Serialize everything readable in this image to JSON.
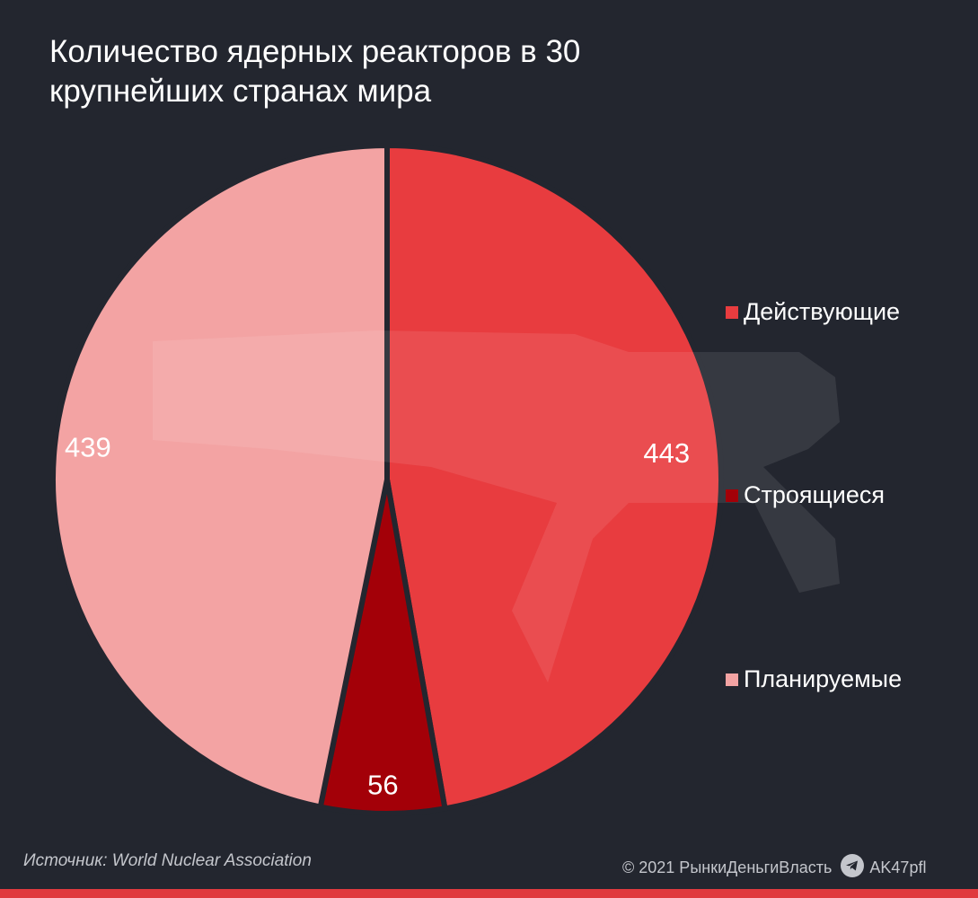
{
  "chart_data": {
    "type": "pie",
    "title": "Количество ядерных реакторов в 30 крупнейших странах мира",
    "slices": [
      {
        "label": "Действующие",
        "value": 443,
        "value_label": "443",
        "color": "#e83c3f"
      },
      {
        "label": "Строящиеся",
        "value": 56,
        "value_label": "56",
        "color": "#a30008"
      },
      {
        "label": "Планируемые",
        "value": 439,
        "value_label": "439",
        "color": "#f3a3a3"
      }
    ],
    "start_angle": "12 o'clock",
    "direction": "clockwise",
    "legend_position": "right"
  },
  "footer": {
    "source": "Источник: World Nuclear Association",
    "copyright": "© 2021  РынкиДеньгиВласть",
    "handle": "AK47pfl"
  },
  "colors": {
    "background": "#23262f",
    "accent_bar": "#e03a3e"
  },
  "icons": {
    "telegram": "telegram-icon",
    "watermark": "rifle-watermark-icon"
  }
}
